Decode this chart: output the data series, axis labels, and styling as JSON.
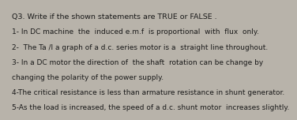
{
  "background_color": "#b8b3aa",
  "text_color": "#1a1a1a",
  "title": "Q3. Write if the shown statements are TRUE or FALSE .",
  "lines": [
    "1- In DC machine  the  induced e.m.f  is proportional  with  flux  only.",
    "2-  The Ta /l a graph of a d.c. series motor is a  straight line throughout.",
    "3- In a DC motor the direction of  the shaft  rotation can be change by",
    "changing the polarity of the power supply.",
    "4-The critical resistance is less than armature resistance in shunt generator.",
    "5-As the load is increased, the speed of a d.c. shunt motor  increases slightly."
  ],
  "title_fontsize": 6.8,
  "body_fontsize": 6.5,
  "font_family": "DejaVu Sans"
}
